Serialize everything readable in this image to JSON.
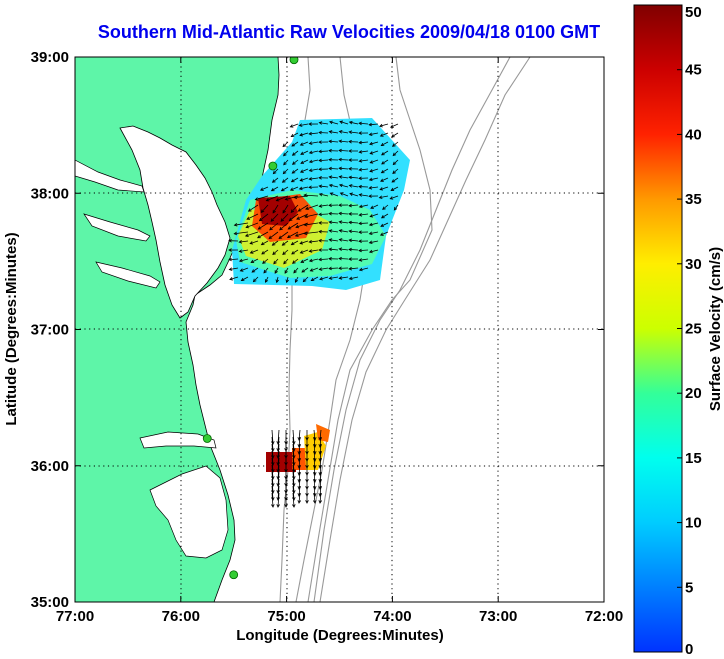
{
  "title": "Southern Mid-Atlantic Raw Velocities 2009/04/18 0100 GMT",
  "x_axis": {
    "label": "Longitude (Degrees:Minutes)",
    "ticks": [
      "77:00",
      "76:00",
      "75:00",
      "74:00",
      "73:00",
      "72:00"
    ]
  },
  "y_axis": {
    "label": "Latitude (Degrees:Minutes)",
    "ticks": [
      "39:00",
      "38:00",
      "37:00",
      "36:00",
      "35:00"
    ]
  },
  "colorbar": {
    "label": "Surface Velocity (cm/s)",
    "ticks": [
      "50",
      "45",
      "40",
      "35",
      "30",
      "25",
      "20",
      "15",
      "10",
      "5",
      "0"
    ],
    "min": 0,
    "max": 50
  },
  "colors": {
    "land": "#5ef5a8",
    "title": "#0000ee",
    "bathymetry": "#999999",
    "station": "#33cc33"
  },
  "stations_lonlat": [
    [
      -74.93,
      38.98
    ],
    [
      -75.13,
      38.2
    ],
    [
      -75.75,
      36.2
    ],
    [
      -75.5,
      35.2
    ]
  ]
}
